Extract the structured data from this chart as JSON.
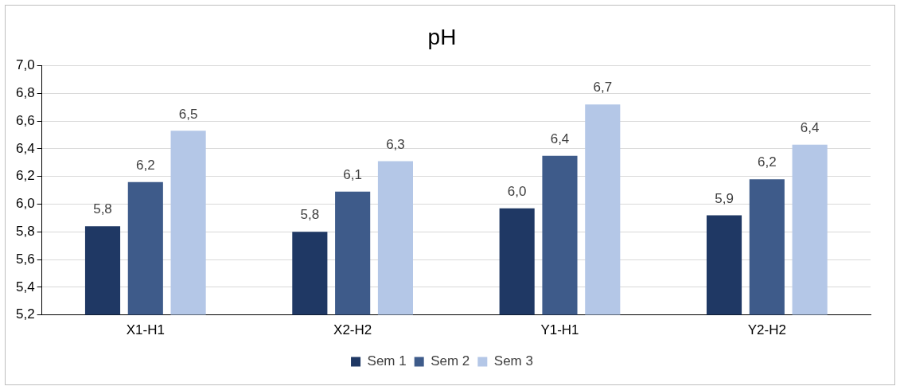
{
  "chart_data": {
    "type": "bar",
    "title": "pH",
    "categories": [
      "X1-H1",
      "X2-H2",
      "Y1-H1",
      "Y2-H2"
    ],
    "series": [
      {
        "name": "Sem 1",
        "color": "#1f3864",
        "values": [
          5.84,
          5.8,
          5.97,
          5.92
        ],
        "value_labels": [
          "5,8",
          "5,8",
          "6,0",
          "5,9"
        ]
      },
      {
        "name": "Sem 2",
        "color": "#3e5b8a",
        "values": [
          6.16,
          6.09,
          6.35,
          6.18
        ],
        "value_labels": [
          "6,2",
          "6,1",
          "6,4",
          "6,2"
        ]
      },
      {
        "name": "Sem 3",
        "color": "#b4c7e7",
        "values": [
          6.53,
          6.31,
          6.72,
          6.43
        ],
        "value_labels": [
          "6,5",
          "6,3",
          "6,7",
          "6,4"
        ]
      }
    ],
    "ylim": [
      5.2,
      7.0
    ],
    "yticks": [
      {
        "value": 5.2,
        "label": "5,2"
      },
      {
        "value": 5.4,
        "label": "5,4"
      },
      {
        "value": 5.6,
        "label": "5,6"
      },
      {
        "value": 5.8,
        "label": "5,8"
      },
      {
        "value": 6.0,
        "label": "6,0"
      },
      {
        "value": 6.2,
        "label": "6,2"
      },
      {
        "value": 6.4,
        "label": "6,4"
      },
      {
        "value": 6.6,
        "label": "6,6"
      },
      {
        "value": 6.8,
        "label": "6,8"
      },
      {
        "value": 7.0,
        "label": "7,0"
      }
    ],
    "grid": "y",
    "legend": "bottom"
  }
}
